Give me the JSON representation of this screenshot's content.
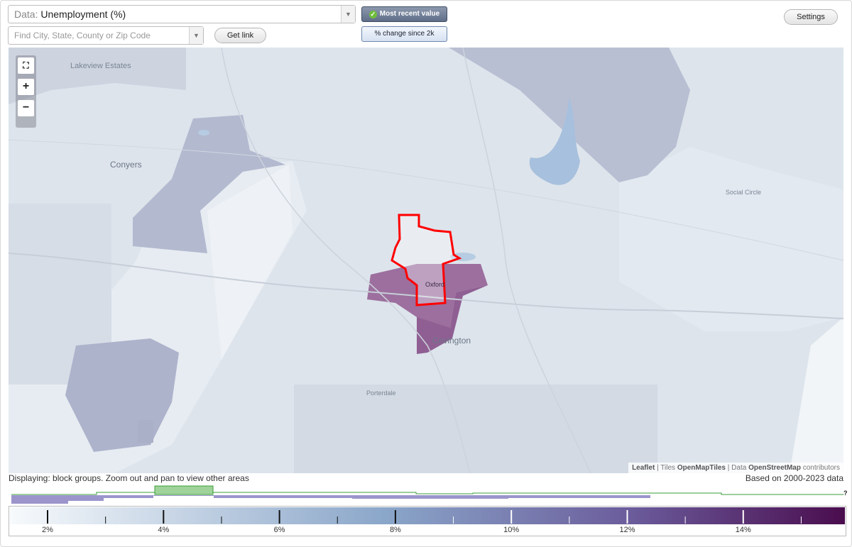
{
  "toolbar": {
    "data_label": "Data:",
    "data_value": "Unemployment (%)",
    "search_placeholder": "Find City, State, County or Zip Code",
    "get_link": "Get link",
    "most_recent": "Most recent value",
    "pct_change": "% change since 2k",
    "settings": "Settings"
  },
  "map": {
    "places": {
      "lakeview": "Lakeview Estates",
      "conyers": "Conyers",
      "oxford": "Oxford",
      "covington": "Covington",
      "porterdale": "Porterdale",
      "social_circle": "Social Circle"
    },
    "attribution": {
      "leaflet": "Leaflet",
      "tiles": "Tiles",
      "tiles_name": "OpenMapTiles",
      "data": "Data",
      "osm": "OpenStreetMap",
      "contributors": "contributors"
    }
  },
  "status": {
    "displaying": "Displaying: block groups. Zoom out and pan to view other areas",
    "based_on": "Based on 2000-2023 data",
    "unknown_marker": "?"
  },
  "legend": {
    "labels": [
      "2%",
      "4%",
      "6%",
      "8%",
      "10%",
      "12%",
      "14%"
    ],
    "gradient_start": "#f7fafc",
    "gradient_mid": "#8aa6c9",
    "gradient_end": "#4a0d4e"
  },
  "colors": {
    "accent_selection": "#ff0000",
    "histogram_green": "#3a9d3a",
    "histogram_purple": "#9b95cc"
  }
}
